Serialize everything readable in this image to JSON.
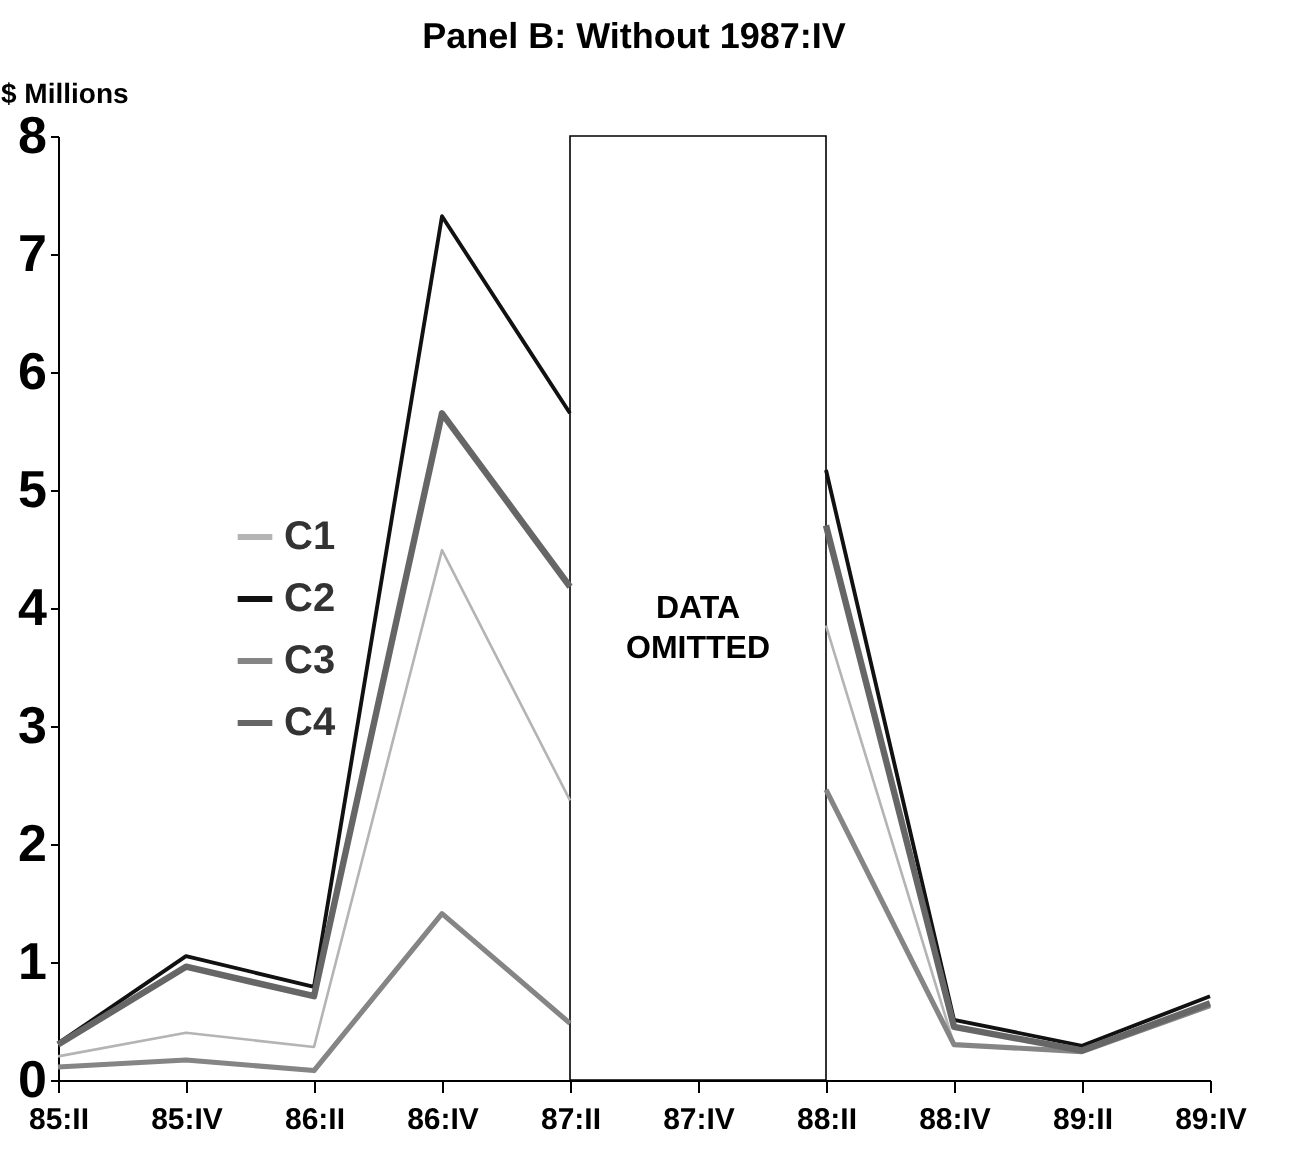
{
  "chart_data": {
    "type": "line",
    "title": "Panel B: Without 1987:IV",
    "ylabel": "$ Millions",
    "categories": [
      "85:II",
      "85:IV",
      "86:II",
      "86:IV",
      "87:II",
      "87:IV",
      "88:II",
      "88:IV",
      "89:II",
      "89:IV"
    ],
    "series": [
      {
        "name": "C1",
        "color": "#b4b4b4",
        "values": [
          0.2,
          0.4,
          0.28,
          4.49,
          2.37,
          null,
          3.85,
          0.3,
          0.24,
          0.62
        ]
      },
      {
        "name": "C2",
        "color": "#111111",
        "values": [
          0.31,
          1.05,
          0.79,
          7.32,
          5.65,
          null,
          5.17,
          0.51,
          0.29,
          0.71
        ]
      },
      {
        "name": "C3",
        "color": "#858585",
        "values": [
          0.11,
          0.17,
          0.08,
          1.41,
          0.48,
          null,
          2.46,
          0.3,
          0.24,
          0.63
        ]
      },
      {
        "name": "C4",
        "color": "#666666",
        "values": [
          0.3,
          0.96,
          0.71,
          5.65,
          4.18,
          null,
          4.7,
          0.45,
          0.25,
          0.65
        ]
      }
    ],
    "bands": [
      {
        "axis": "x",
        "from": "87:II",
        "to": "88:II",
        "label": "DATA OMITTED"
      }
    ],
    "ylim": [
      0,
      8
    ],
    "yticks": [
      0,
      1,
      2,
      3,
      4,
      5,
      6,
      7,
      8
    ],
    "grid": false,
    "legend": "left",
    "marker": "none",
    "line_style": "solid"
  }
}
